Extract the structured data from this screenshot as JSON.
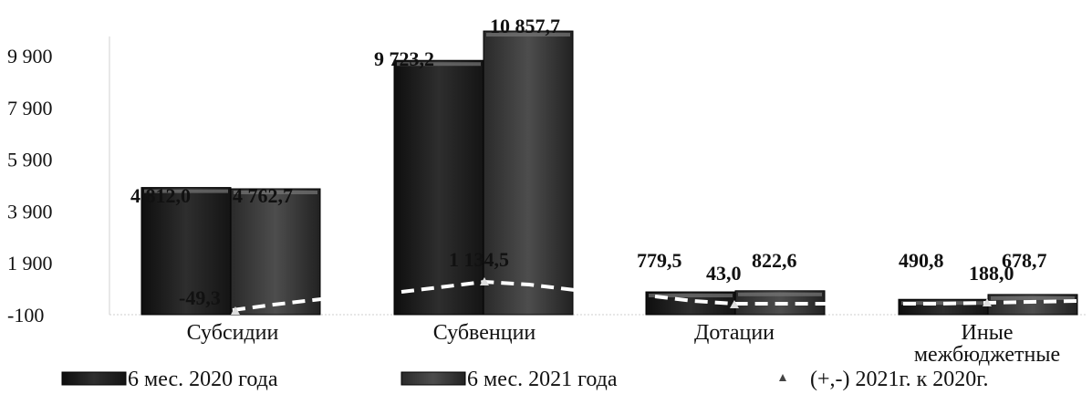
{
  "chart_data": {
    "type": "bar",
    "categories": [
      "Субсидии",
      "Субвенции",
      "Дотации",
      "Иные межбюджетные"
    ],
    "series": [
      {
        "name": "6 мес. 2020 года",
        "values": [
          4812.0,
          9723.2,
          779.5,
          490.8
        ],
        "labels": [
          "4 812,0",
          "9 723,2",
          "779,5",
          "490,8"
        ]
      },
      {
        "name": "6 мес. 2021 года",
        "values": [
          4762.7,
          10857.7,
          822.6,
          678.7
        ],
        "labels": [
          "4 762,7",
          "10 857,7",
          "822,6",
          "678,7"
        ]
      },
      {
        "name": "(+,-) 2021г. к 2020г.",
        "type": "line",
        "values": [
          -49.3,
          1134.5,
          43.0,
          188.0
        ],
        "labels": [
          "-49,3",
          "1 134,5",
          "43,0",
          "188,0"
        ]
      }
    ],
    "yticks": [
      "-100",
      "1 900",
      "3 900",
      "5 900",
      "7 900",
      "9 900"
    ],
    "ytick_values": [
      -100,
      1900,
      3900,
      5900,
      7900,
      9900
    ],
    "ylim": [
      -100,
      11000
    ],
    "legend_position": "bottom",
    "colors": {
      "series2020": "#1b1b1b",
      "series2021": "#3a3a3a",
      "diff": "#ffffff"
    }
  }
}
